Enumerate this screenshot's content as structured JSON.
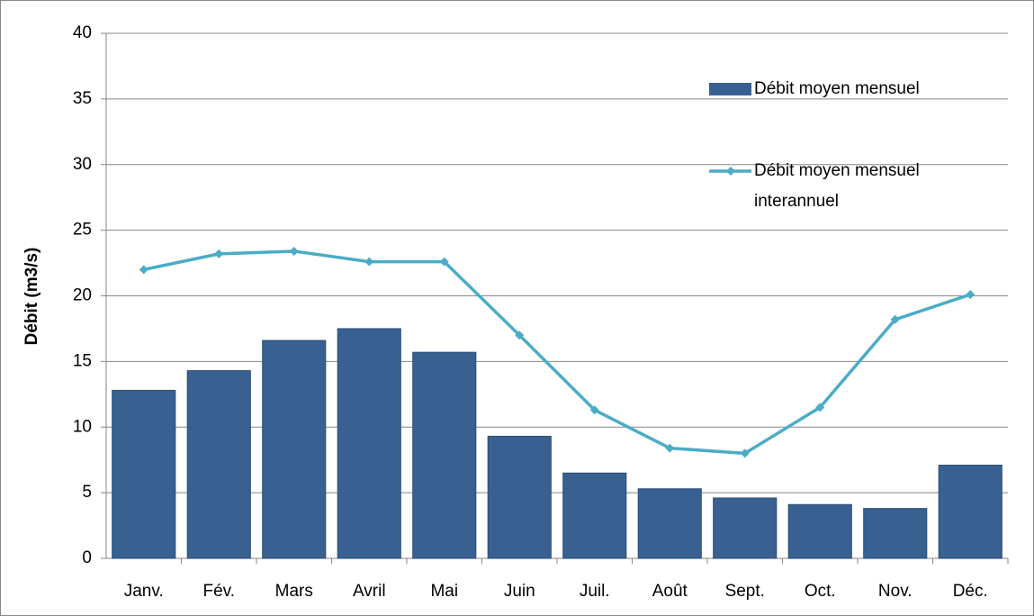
{
  "chart_data": {
    "type": "bar",
    "ylabel": "Débit (m3/s)",
    "categories": [
      "Janv.",
      "Fév.",
      "Mars",
      "Avril",
      "Mai",
      "Juin",
      "Juil.",
      "Août",
      "Sept.",
      "Oct.",
      "Nov.",
      "Déc."
    ],
    "series": [
      {
        "name": "Débit moyen mensuel",
        "type": "bar",
        "color": "#386192",
        "values": [
          12.8,
          14.3,
          16.6,
          17.5,
          15.7,
          9.3,
          6.5,
          5.3,
          4.6,
          4.1,
          3.8,
          7.1
        ]
      },
      {
        "name": "Débit moyen mensuel interannuel",
        "type": "line",
        "color": "#4bacc6",
        "values": [
          22.0,
          23.2,
          23.4,
          22.6,
          22.6,
          17.0,
          11.3,
          8.4,
          8.0,
          11.5,
          18.2,
          20.1
        ]
      }
    ],
    "ylim": [
      0,
      40
    ],
    "yticks": [
      0,
      5,
      10,
      15,
      20,
      25,
      30,
      35,
      40
    ],
    "grid": true,
    "legend": "upper right"
  }
}
